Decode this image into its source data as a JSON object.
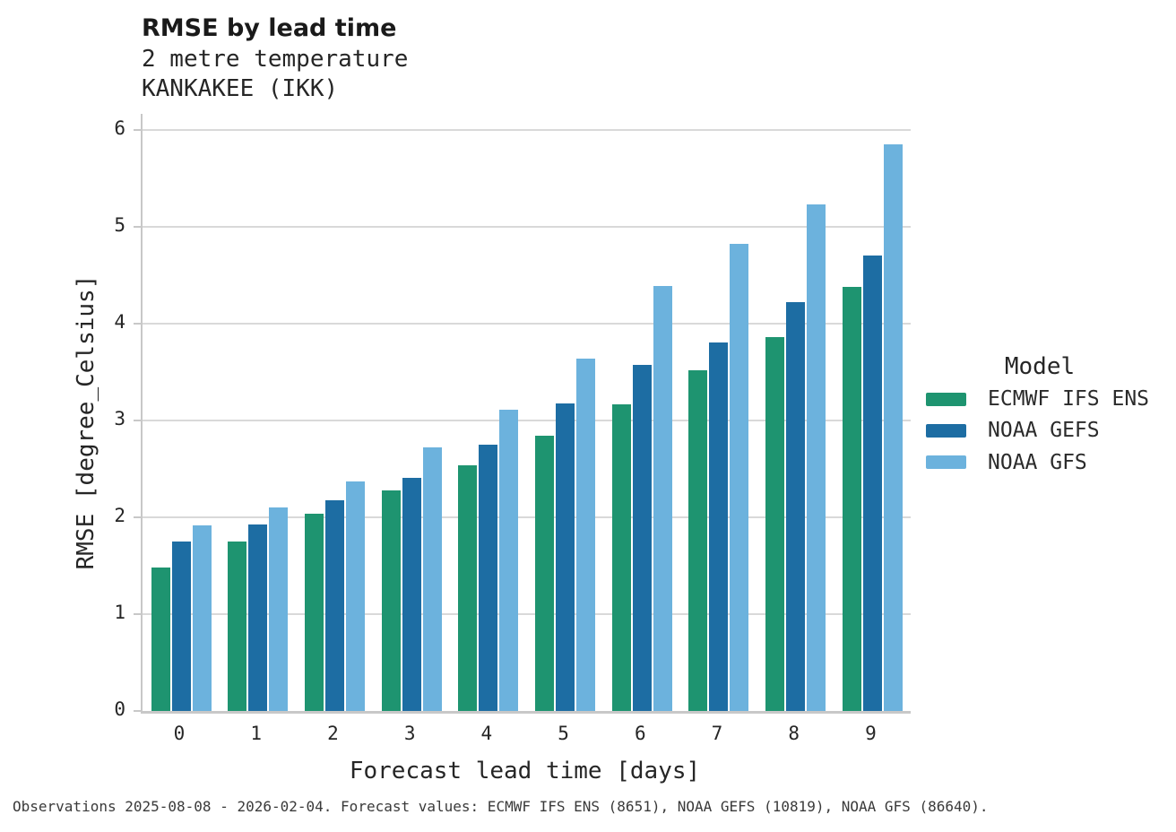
{
  "title": "RMSE by lead time",
  "subtitle_line1": "2 metre temperature",
  "subtitle_line2": "KANKAKEE (IKK)",
  "footer": "Observations 2025-08-08 - 2026-02-04. Forecast values: ECMWF IFS ENS (8651), NOAA GEFS (10819), NOAA GFS (86640).",
  "legend": {
    "title": "Model"
  },
  "colors": {
    "ecmwf_green": "#1e9470",
    "gefs_dark_blue": "#1d6da3",
    "gfs_light_blue": "#6cb2dd",
    "gridline": "#d9d9d9",
    "axis": "#c8c8c8"
  },
  "chart_data": {
    "type": "bar",
    "title": "RMSE by lead time",
    "subtitle": [
      "2 metre temperature",
      "KANKAKEE (IKK)"
    ],
    "xlabel": "Forecast lead time [days]",
    "ylabel": "RMSE [degree_Celsius]",
    "categories": [
      "0",
      "1",
      "2",
      "3",
      "4",
      "5",
      "6",
      "7",
      "8",
      "9"
    ],
    "series": [
      {
        "name": "ECMWF IFS ENS",
        "color": "#1e9470",
        "values": [
          1.48,
          1.75,
          2.04,
          2.28,
          2.54,
          2.84,
          3.17,
          3.52,
          3.86,
          4.38
        ]
      },
      {
        "name": "NOAA GEFS",
        "color": "#1d6da3",
        "values": [
          1.75,
          1.93,
          2.18,
          2.41,
          2.75,
          3.18,
          3.57,
          3.81,
          4.22,
          4.7
        ]
      },
      {
        "name": "NOAA GFS",
        "color": "#6cb2dd",
        "values": [
          1.92,
          2.1,
          2.37,
          2.72,
          3.11,
          3.64,
          4.39,
          4.82,
          5.23,
          5.85
        ]
      }
    ],
    "ylim": [
      0,
      6
    ],
    "yticks": [
      0,
      1,
      2,
      3,
      4,
      5,
      6
    ],
    "grid": true,
    "legend_title": "Model",
    "legend_position": "right",
    "footnote": "Observations 2025-08-08 - 2026-02-04. Forecast values: ECMWF IFS ENS (8651), NOAA GEFS (10819), NOAA GFS (86640)."
  }
}
